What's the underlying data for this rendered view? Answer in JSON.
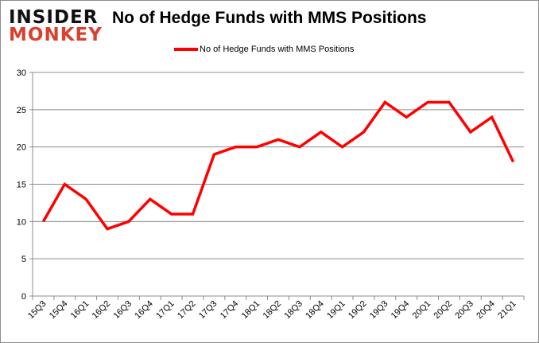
{
  "logo": {
    "line1": "INSIDER",
    "line2": "MONKEY"
  },
  "chart_data": {
    "type": "line",
    "title": "No of Hedge Funds with MMS Positions",
    "categories": [
      "15Q3",
      "15Q4",
      "16Q1",
      "16Q2",
      "16Q3",
      "16Q4",
      "17Q1",
      "17Q2",
      "17Q3",
      "17Q4",
      "18Q1",
      "18Q2",
      "18Q3",
      "18Q4",
      "19Q1",
      "19Q2",
      "19Q3",
      "19Q4",
      "20Q1",
      "20Q2",
      "20Q3",
      "20Q4",
      "21Q1"
    ],
    "series": [
      {
        "name": "No of Hedge Funds with MMS Positions",
        "color": "#ff0000",
        "values": [
          10,
          15,
          13,
          9,
          10,
          13,
          11,
          11,
          19,
          20,
          20,
          21,
          20,
          22,
          20,
          22,
          26,
          24,
          26,
          26,
          22,
          24,
          18
        ]
      }
    ],
    "ylim": [
      0,
      30
    ],
    "yticks": [
      0,
      5,
      10,
      15,
      20,
      25,
      30
    ],
    "grid": true,
    "legend": "top"
  }
}
